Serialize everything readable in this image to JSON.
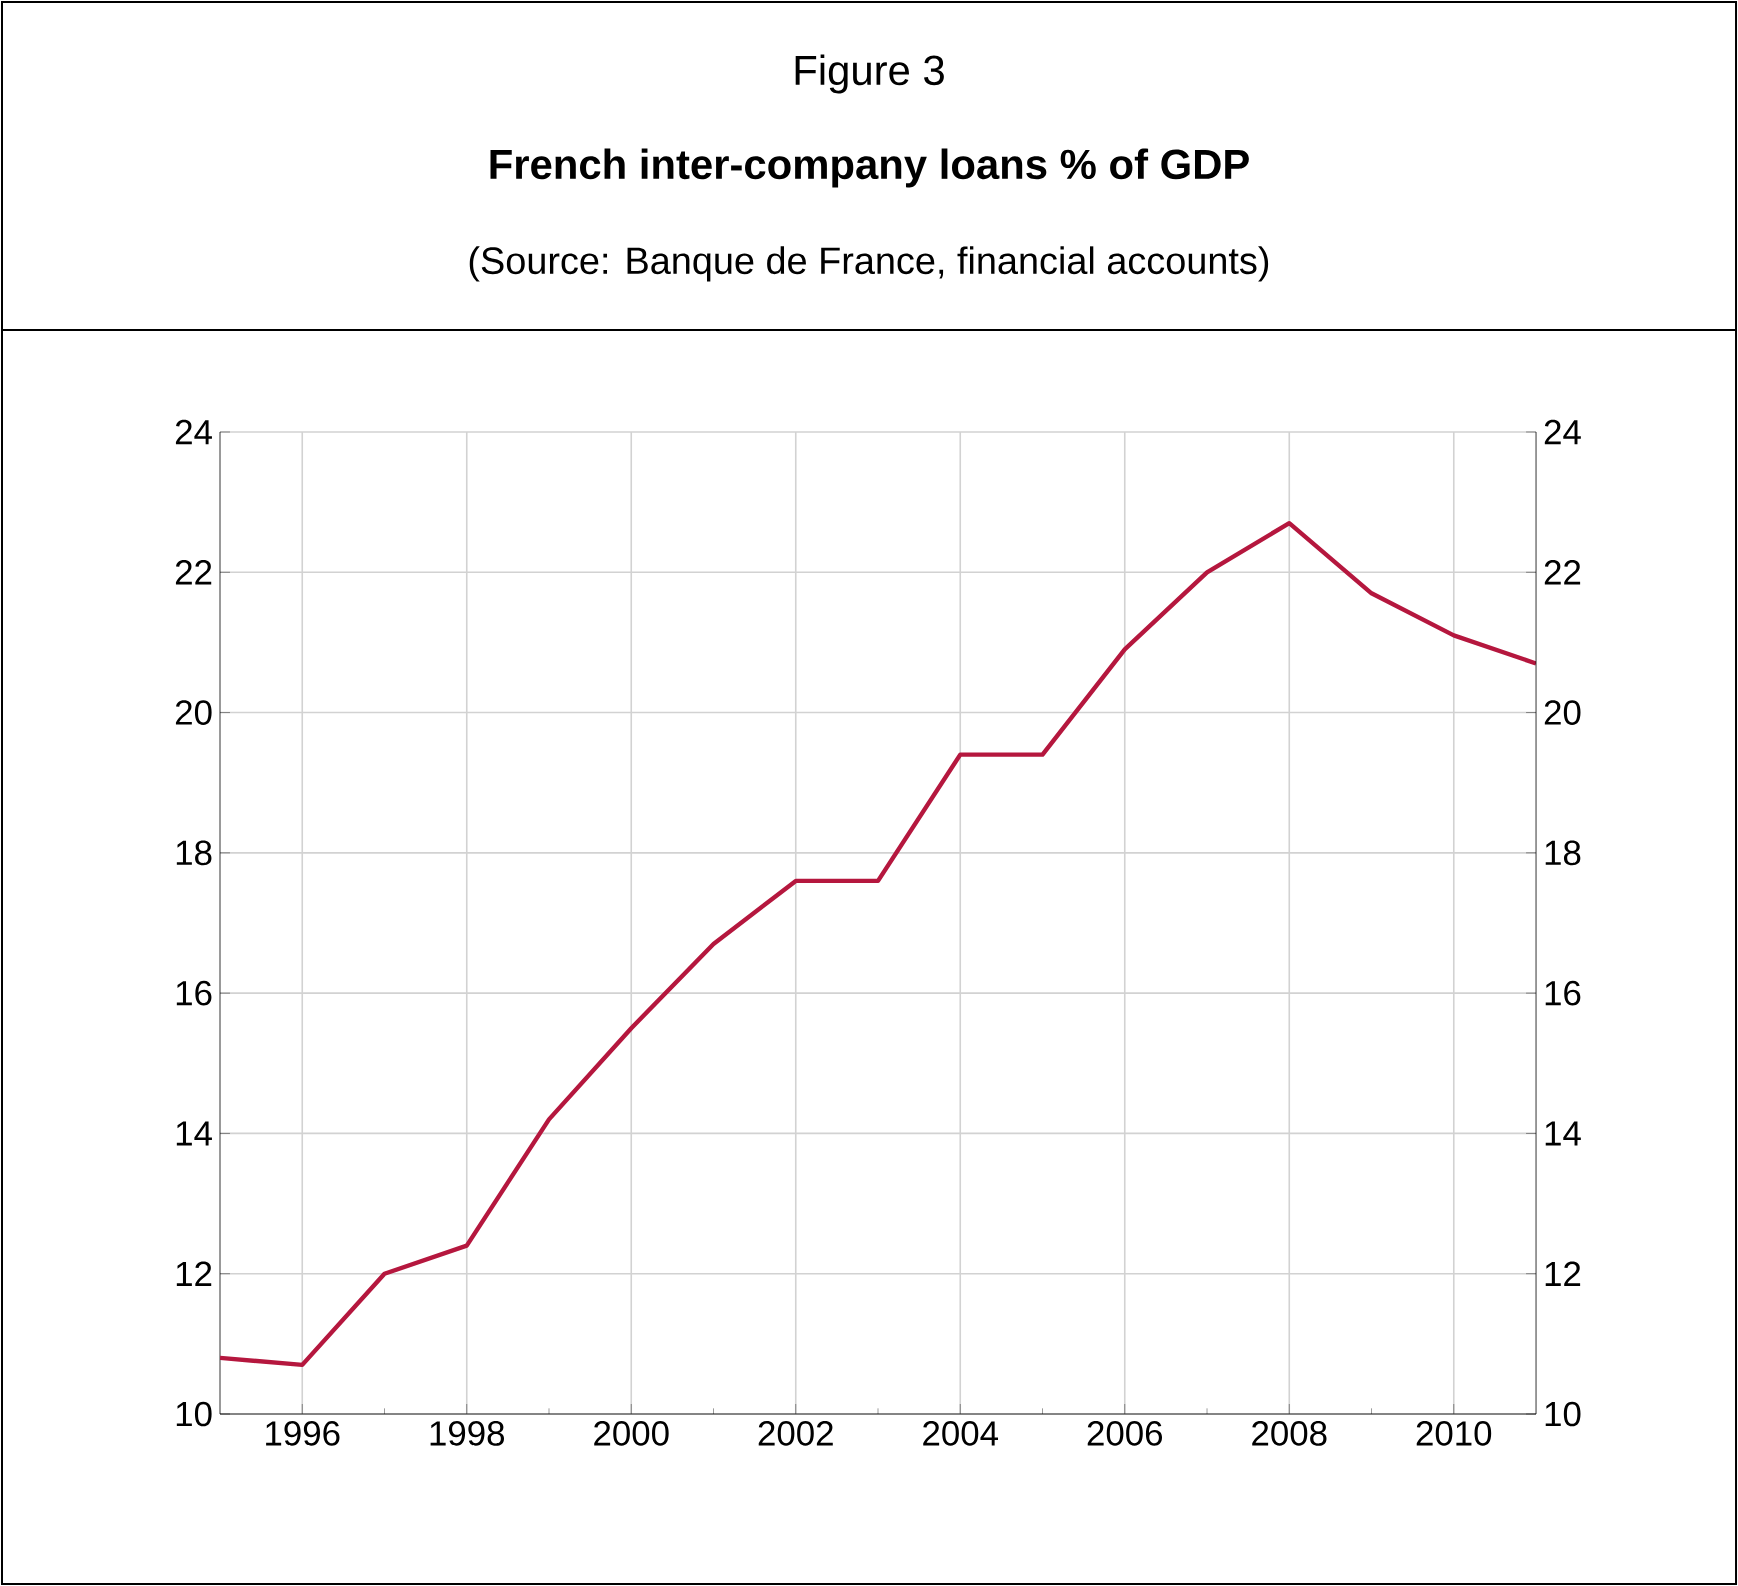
{
  "chart_data": {
    "type": "line",
    "title": "Figure 3",
    "subtitle": "French inter-company loans % of GDP",
    "annotations": [
      "(Source: Banque de France, financial accounts)"
    ],
    "x": [
      1995,
      1996,
      1997,
      1998,
      1999,
      2000,
      2001,
      2002,
      2003,
      2004,
      2005,
      2006,
      2007,
      2008,
      2009,
      2010,
      2011
    ],
    "series": [
      {
        "color": "#b5173e",
        "values": [
          10.8,
          10.7,
          12.0,
          12.4,
          14.2,
          15.5,
          16.7,
          17.6,
          17.6,
          19.4,
          19.4,
          20.9,
          22.0,
          22.7,
          21.7,
          21.1,
          20.7
        ]
      }
    ],
    "xlim": [
      1995,
      2011
    ],
    "xticks": [
      1996,
      1998,
      2000,
      2002,
      2004,
      2006,
      2008,
      2010
    ],
    "ylim": [
      10,
      24
    ],
    "yticks": [
      10,
      12,
      14,
      16,
      18,
      20,
      22,
      24
    ],
    "y2lim": [
      10,
      24
    ],
    "y2ticks": [
      10,
      12,
      14,
      16,
      18,
      20,
      22,
      24
    ],
    "grid": true,
    "line_style": "solid"
  }
}
